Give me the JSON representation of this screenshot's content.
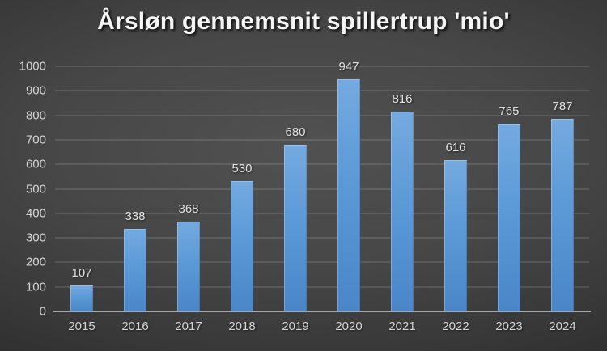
{
  "chart_data": {
    "type": "bar",
    "title": "Årsløn gennemsnit spillertrup 'mio'",
    "categories": [
      "2015",
      "2016",
      "2017",
      "2018",
      "2019",
      "2020",
      "2021",
      "2022",
      "2023",
      "2024"
    ],
    "values": [
      107,
      338,
      368,
      530,
      680,
      947,
      816,
      616,
      765,
      787
    ],
    "xlabel": "",
    "ylabel": "",
    "ylim": [
      0,
      1000
    ],
    "ytick_step": 100,
    "grid": true,
    "legend": "none",
    "data_labels": "outside-end",
    "colors": {
      "bar_top": "#74aadf",
      "bar_mid": "#5b99d7",
      "bar_bottom": "#4a86c8",
      "gridline": "rgba(255,255,255,0.22)",
      "axis_line": "#a8a8a8",
      "tick_label": "#d6d6d6",
      "value_label": "#e2e2e2",
      "title": "#f5f5f5",
      "background_center": "#515151",
      "background_edge": "#1d1d1d"
    }
  }
}
